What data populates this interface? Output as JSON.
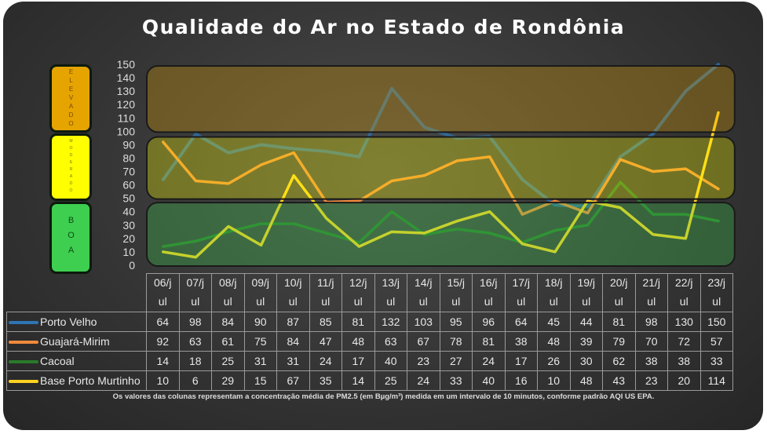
{
  "chart_data": {
    "type": "line",
    "title": "Qualidade  do Ar no Estado de Rondônia",
    "categories": [
      "06/jul",
      "07/jul",
      "08/jul",
      "09/jul",
      "10/jul",
      "11/jul",
      "12/jul",
      "13/jul",
      "14/jul",
      "15/jul",
      "16/jul",
      "17/jul",
      "18/jul",
      "19/jul",
      "20/jul",
      "21/jul",
      "22/jul",
      "23/jul"
    ],
    "category_lines": [
      [
        "06/j",
        "ul"
      ],
      [
        "07/j",
        "ul"
      ],
      [
        "08/j",
        "ul"
      ],
      [
        "09/j",
        "ul"
      ],
      [
        "10/j",
        "ul"
      ],
      [
        "11/j",
        "ul"
      ],
      [
        "12/j",
        "ul"
      ],
      [
        "13/j",
        "ul"
      ],
      [
        "14/j",
        "ul"
      ],
      [
        "15/j",
        "ul"
      ],
      [
        "16/j",
        "ul"
      ],
      [
        "17/j",
        "ul"
      ],
      [
        "18/j",
        "ul"
      ],
      [
        "19/j",
        "ul"
      ],
      [
        "20/j",
        "ul"
      ],
      [
        "21/j",
        "ul"
      ],
      [
        "22/j",
        "ul"
      ],
      [
        "23/j",
        "ul"
      ]
    ],
    "ylim": [
      0,
      150
    ],
    "yticks": [
      0,
      10,
      20,
      30,
      40,
      50,
      60,
      70,
      80,
      90,
      100,
      110,
      120,
      130,
      140,
      150
    ],
    "series": [
      {
        "name": "Porto Velho",
        "color": "#2e75b6",
        "values": [
          64,
          98,
          84,
          90,
          87,
          85,
          81,
          132,
          103,
          95,
          96,
          64,
          45,
          44,
          81,
          98,
          130,
          150
        ]
      },
      {
        "name": "Guajará-Mirim",
        "color": "#f08a3c",
        "values": [
          92,
          63,
          61,
          75,
          84,
          47,
          48,
          63,
          67,
          78,
          81,
          38,
          48,
          39,
          79,
          70,
          72,
          57
        ]
      },
      {
        "name": "Cacoal",
        "color": "#2a7a2a",
        "values": [
          14,
          18,
          25,
          31,
          31,
          24,
          17,
          40,
          23,
          27,
          24,
          17,
          26,
          30,
          62,
          38,
          38,
          33
        ]
      },
      {
        "name": "Base Porto Murtinho",
        "color": "#ffd21f",
        "values": [
          10,
          6,
          29,
          15,
          67,
          35,
          14,
          25,
          24,
          33,
          40,
          16,
          10,
          48,
          43,
          23,
          20,
          114
        ]
      }
    ],
    "bands": [
      {
        "label": "ELEVADO",
        "range": [
          100,
          150
        ],
        "color": "#e6a400"
      },
      {
        "label": "MODERADO",
        "range": [
          50,
          97
        ],
        "color": "#ffff00"
      },
      {
        "label": "BOA",
        "range": [
          0,
          48
        ],
        "color": "#3ecf50"
      }
    ],
    "footnote": "Os valores das colunas representam a concentração  média de PM2.5 (em Bµg/m³) medida em um intervalo de 10 minutos, conforme padrão AQI US EPA."
  }
}
